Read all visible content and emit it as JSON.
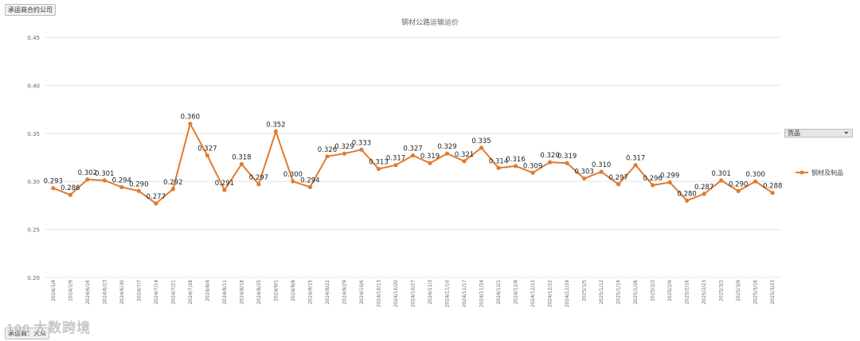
{
  "ui": {
    "top_filter_label": "承运商合约公司",
    "bottom_filter_label": "承运商：大众",
    "product_filter_label": "货品",
    "watermark_logo": "100",
    "watermark_text": "大数跨境"
  },
  "colors": {
    "series": "#e07b2e",
    "grid": "#e6e6e6",
    "axis_text": "#666666",
    "title_text": "#666666",
    "label_text": "#222222"
  },
  "chart_data": {
    "type": "line",
    "title": "钢材公路运输运价",
    "xlabel": "",
    "ylabel": "",
    "ylim": [
      0.2,
      0.45
    ],
    "yticks": [
      "0.20",
      "0.25",
      "0.30",
      "0.35",
      "0.40",
      "0.45"
    ],
    "grid": true,
    "legend_position": "right",
    "categories": [
      "2024/1/4",
      "2024/1/9",
      "2024/6/16",
      "2024/6/23",
      "2024/6/30",
      "2024/7/7",
      "2024/7/14",
      "2024/7/21",
      "2024/7/28",
      "2024/8/4",
      "2024/8/11",
      "2024/8/18",
      "2024/8/25",
      "2024/9/1",
      "2024/9/8",
      "2024/9/15",
      "2024/9/22",
      "2024/9/29",
      "2024/10/6",
      "2024/10/13",
      "2024/10/20",
      "2024/10/27",
      "2024/11/3",
      "2024/11/10",
      "2024/11/17",
      "2024/11/24",
      "2024/12/1",
      "2024/12/8",
      "2024/12/15",
      "2024/12/22",
      "2024/12/29",
      "2025/1/5",
      "2025/1/12",
      "2025/1/19",
      "2025/1/26",
      "2025/2/2",
      "2025/2/9",
      "2025/2/16",
      "2025/2/23",
      "2025/3/2",
      "2025/3/9",
      "2025/3/16",
      "2025/3/23"
    ],
    "series": [
      {
        "name": "钢材及制品",
        "values": [
          0.293,
          0.286,
          0.302,
          0.301,
          0.294,
          0.29,
          0.277,
          0.292,
          0.36,
          0.327,
          0.291,
          0.318,
          0.297,
          0.352,
          0.3,
          0.294,
          0.326,
          0.329,
          0.333,
          0.313,
          0.317,
          0.327,
          0.319,
          0.329,
          0.321,
          0.335,
          0.314,
          0.316,
          0.309,
          0.32,
          0.319,
          0.303,
          0.31,
          0.297,
          0.317,
          0.296,
          0.299,
          0.28,
          0.287,
          0.301,
          0.29,
          0.3,
          0.288
        ],
        "labels": [
          "0.293",
          "0.286",
          "0.302",
          "0.301",
          "0.294",
          "0.290",
          "0.277",
          "0.292",
          "0.360",
          "0.327",
          "0.291",
          "0.318",
          "0.297",
          "0.352",
          "0.300",
          "0.294",
          "0.326",
          "0.329",
          "0.333",
          "0.313",
          "0.317",
          "0.327",
          "0.319",
          "0.329",
          "0.321",
          "0.335",
          "0.314",
          "0.316",
          "0.309",
          "0.320",
          "0.319",
          "0.303",
          "0.310",
          "0.297",
          "0.317",
          "0.296",
          "0.299",
          "0.280",
          "0.287",
          "0.301",
          "0.290",
          "0.300",
          "0.288"
        ]
      }
    ]
  }
}
